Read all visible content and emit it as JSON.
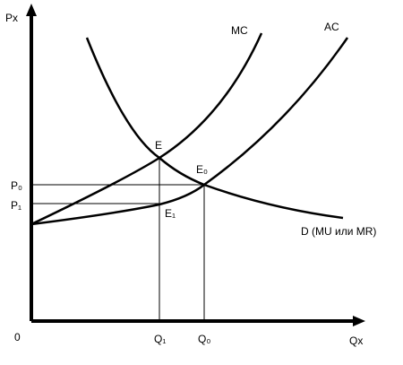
{
  "axes": {
    "y_label": "Px",
    "x_label": "Qx",
    "origin": "0"
  },
  "levels": {
    "p0": "P₀",
    "p1": "P₁",
    "q1": "Q₁",
    "q0": "Q₀"
  },
  "curves": {
    "mc": "MC",
    "ac": "AC",
    "demand": "D (MU или MR)"
  },
  "points": {
    "e": "E",
    "e0": "E₀",
    "e1": "E₁"
  }
}
